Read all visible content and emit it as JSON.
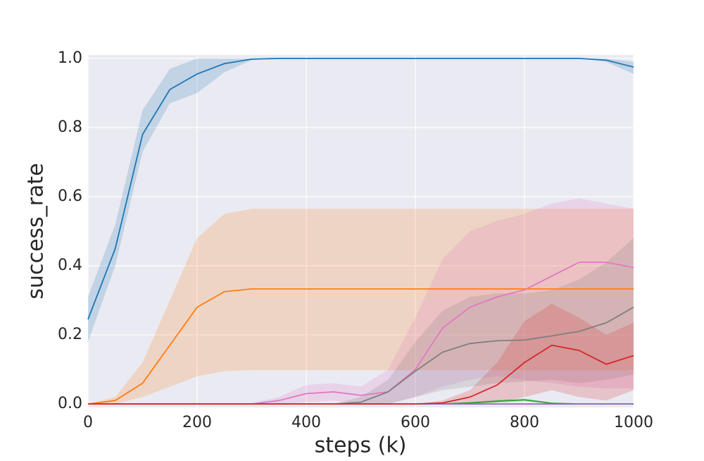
{
  "chart_data": {
    "type": "line",
    "xlabel": "steps (k)",
    "ylabel": "success_rate",
    "x": [
      0,
      50,
      100,
      150,
      200,
      250,
      300,
      350,
      400,
      450,
      500,
      550,
      600,
      650,
      700,
      750,
      800,
      850,
      900,
      950,
      1000
    ],
    "xlim": [
      0,
      1000
    ],
    "xticks": [
      0,
      200,
      400,
      600,
      800,
      1000
    ],
    "ylim": [
      -0.01,
      1.01
    ],
    "yticks": [
      {
        "value": 0,
        "label": "0.0"
      },
      {
        "value": 0.2,
        "label": "0.2"
      },
      {
        "value": 0.4,
        "label": "0.4"
      },
      {
        "value": 0.6,
        "label": "0.6"
      },
      {
        "value": 0.8,
        "label": "0.8"
      },
      {
        "value": 1,
        "label": "1.0"
      }
    ],
    "grid": true,
    "series": [
      {
        "color": "#1f77b4",
        "values": [
          0.245,
          0.45,
          0.78,
          0.91,
          0.955,
          0.985,
          0.998,
          1,
          1,
          1,
          1,
          1,
          1,
          1,
          1,
          1,
          1,
          1,
          1,
          0.995,
          0.975
        ],
        "lower": [
          0.18,
          0.4,
          0.73,
          0.87,
          0.9,
          0.96,
          0.995,
          1,
          1,
          1,
          1,
          1,
          1,
          1,
          1,
          1,
          1,
          1,
          1,
          0.99,
          0.955
        ],
        "upper": [
          0.31,
          0.52,
          0.85,
          0.97,
          1,
          1,
          1,
          1,
          1,
          1,
          1,
          1,
          1,
          1,
          1,
          1,
          1,
          1,
          1,
          1,
          0.99
        ]
      },
      {
        "color": "#ff7f0e",
        "values": [
          0,
          0.01,
          0.06,
          0.17,
          0.28,
          0.325,
          0.333,
          0.333,
          0.333,
          0.333,
          0.333,
          0.333,
          0.333,
          0.333,
          0.333,
          0.333,
          0.333,
          0.333,
          0.333,
          0.333,
          0.333
        ],
        "lower": [
          0,
          0,
          0.02,
          0.05,
          0.08,
          0.095,
          0.098,
          0.098,
          0.098,
          0.098,
          0.098,
          0.098,
          0.098,
          0.098,
          0.098,
          0.098,
          0.098,
          0.098,
          0.098,
          0.098,
          0.098
        ],
        "upper": [
          0,
          0.02,
          0.12,
          0.3,
          0.48,
          0.55,
          0.565,
          0.565,
          0.565,
          0.565,
          0.565,
          0.565,
          0.565,
          0.565,
          0.565,
          0.565,
          0.565,
          0.565,
          0.565,
          0.565,
          0.565
        ]
      },
      {
        "color": "#2ca02c",
        "values": [
          0,
          0,
          0,
          0,
          0,
          0,
          0,
          0,
          0,
          0,
          0,
          0,
          0,
          0,
          0.003,
          0.008,
          0.012,
          0.002,
          0,
          0,
          0
        ],
        "lower": [
          0,
          0,
          0,
          0,
          0,
          0,
          0,
          0,
          0,
          0,
          0,
          0,
          0,
          0,
          0,
          0.004,
          0.008,
          0,
          0,
          0,
          0
        ],
        "upper": [
          0,
          0,
          0,
          0,
          0,
          0,
          0,
          0,
          0,
          0,
          0,
          0,
          0,
          0,
          0.006,
          0.012,
          0.016,
          0.004,
          0.002,
          0.002,
          0.002
        ]
      },
      {
        "color": "#9467bd",
        "values": [
          0,
          0,
          0,
          0,
          0,
          0,
          0,
          0,
          0,
          0,
          0,
          0,
          0,
          0,
          0,
          0,
          0,
          0,
          0,
          0,
          0
        ],
        "lower": [
          0,
          0,
          0,
          0,
          0,
          0,
          0,
          0,
          0,
          0,
          0,
          0,
          0,
          0,
          0,
          0,
          0,
          0,
          0,
          0,
          0
        ],
        "upper": [
          0,
          0,
          0,
          0,
          0,
          0,
          0,
          0,
          0,
          0,
          0,
          0,
          0,
          0,
          0,
          0,
          0,
          0,
          0,
          0,
          0
        ]
      },
      {
        "color": "#e377c2",
        "values": [
          0,
          0,
          0,
          0,
          0,
          0,
          0,
          0.01,
          0.03,
          0.035,
          0.025,
          0.035,
          0.1,
          0.22,
          0.28,
          0.31,
          0.33,
          0.37,
          0.41,
          0.41,
          0.395
        ],
        "lower": [
          0,
          0,
          0,
          0,
          0,
          0,
          0,
          0,
          0.005,
          0.01,
          0,
          0,
          0.02,
          0.05,
          0.07,
          0.08,
          0.07,
          0.06,
          0.05,
          0.045,
          0.045
        ],
        "upper": [
          0,
          0,
          0,
          0,
          0,
          0,
          0.003,
          0.02,
          0.055,
          0.06,
          0.05,
          0.1,
          0.25,
          0.42,
          0.5,
          0.53,
          0.55,
          0.58,
          0.595,
          0.58,
          0.565
        ]
      },
      {
        "color": "#7f7f7f",
        "values": [
          0,
          0,
          0,
          0,
          0,
          0,
          0,
          0,
          0,
          0,
          0.005,
          0.035,
          0.095,
          0.15,
          0.175,
          0.183,
          0.185,
          0.197,
          0.21,
          0.235,
          0.28
        ],
        "lower": [
          0,
          0,
          0,
          0,
          0,
          0,
          0,
          0,
          0,
          0,
          0,
          0,
          0.02,
          0.04,
          0.05,
          0.06,
          0.065,
          0.07,
          0.06,
          0.07,
          0.085
        ],
        "upper": [
          0,
          0,
          0,
          0,
          0,
          0,
          0,
          0,
          0,
          0,
          0.02,
          0.07,
          0.18,
          0.27,
          0.31,
          0.32,
          0.32,
          0.33,
          0.36,
          0.41,
          0.48
        ]
      },
      {
        "color": "#d62728",
        "values": [
          0,
          0,
          0,
          0,
          0,
          0,
          0,
          0,
          0,
          0,
          0,
          0,
          0,
          0.003,
          0.02,
          0.055,
          0.12,
          0.17,
          0.155,
          0.115,
          0.14
        ],
        "lower": [
          0,
          0,
          0,
          0,
          0,
          0,
          0,
          0,
          0,
          0,
          0,
          0,
          0,
          0,
          0,
          0.005,
          0.02,
          0.04,
          0.02,
          0.01,
          0.04
        ],
        "upper": [
          0,
          0,
          0,
          0,
          0,
          0,
          0,
          0,
          0,
          0,
          0,
          0,
          0,
          0.01,
          0.04,
          0.12,
          0.24,
          0.29,
          0.25,
          0.2,
          0.235
        ]
      }
    ]
  }
}
